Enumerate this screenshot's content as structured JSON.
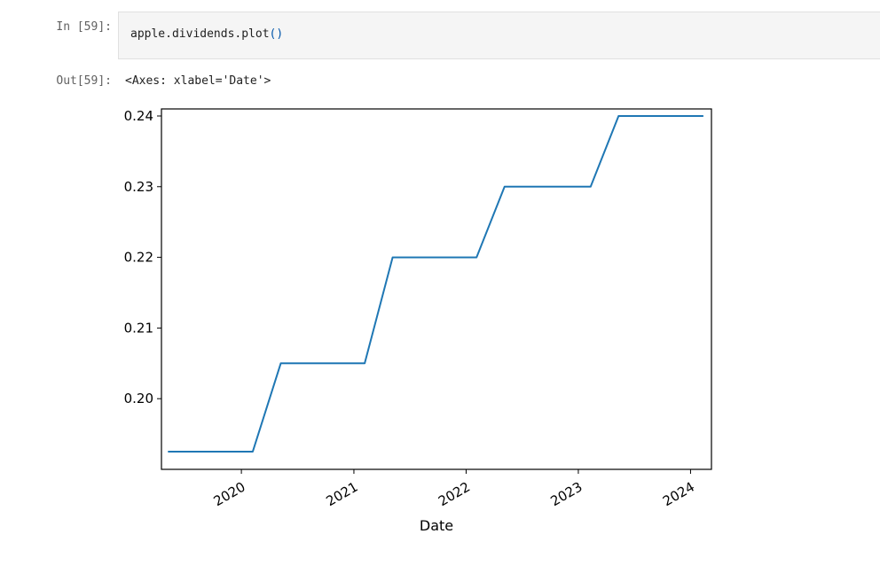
{
  "cell": {
    "in_prompt": "In [59]:",
    "code_object": "apple.dividends.plot",
    "code_parens": "()",
    "out_prompt": "Out[59]:",
    "output_repr": "<Axes: xlabel='Date'>"
  },
  "chart_data": {
    "type": "line",
    "title": "",
    "xlabel": "Date",
    "ylabel": "",
    "x_ticks": [
      "2020",
      "2021",
      "2022",
      "2023",
      "2024"
    ],
    "y_ticks": [
      "0.20",
      "0.21",
      "0.22",
      "0.23",
      "0.24"
    ],
    "xlim": [
      "2019-04-16",
      "2024-03-09"
    ],
    "ylim": [
      0.19,
      0.241
    ],
    "grid": false,
    "legend": "none",
    "line_color": "#1f77b4",
    "series": [
      {
        "x": [
          "2019-05-10",
          "2019-08-09",
          "2019-11-07",
          "2020-02-07",
          "2020-05-08",
          "2020-08-07",
          "2020-11-06",
          "2021-02-05",
          "2021-05-07",
          "2021-08-06",
          "2021-11-05",
          "2022-02-04",
          "2022-05-06",
          "2022-08-05",
          "2022-11-04",
          "2023-02-10",
          "2023-05-12",
          "2023-08-11",
          "2023-11-10",
          "2024-02-09"
        ],
        "values": [
          0.1925,
          0.1925,
          0.1925,
          0.1925,
          0.205,
          0.205,
          0.205,
          0.205,
          0.22,
          0.22,
          0.22,
          0.22,
          0.23,
          0.23,
          0.23,
          0.23,
          0.24,
          0.24,
          0.24,
          0.24
        ]
      }
    ]
  }
}
